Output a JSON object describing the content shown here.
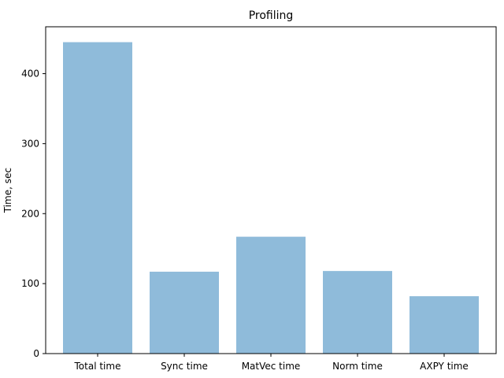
{
  "chart_data": {
    "type": "bar",
    "title": "Profiling",
    "xlabel": "",
    "ylabel": "Time, sec",
    "categories": [
      "Total time",
      "Sync time",
      "MatVec time",
      "Norm time",
      "AXPY time"
    ],
    "values": [
      445,
      117,
      167,
      118,
      82
    ],
    "ylim": [
      0,
      467
    ],
    "yticks": [
      0,
      100,
      200,
      300,
      400
    ],
    "bar_color": "#8fbbda",
    "grid": false,
    "legend": "none"
  }
}
